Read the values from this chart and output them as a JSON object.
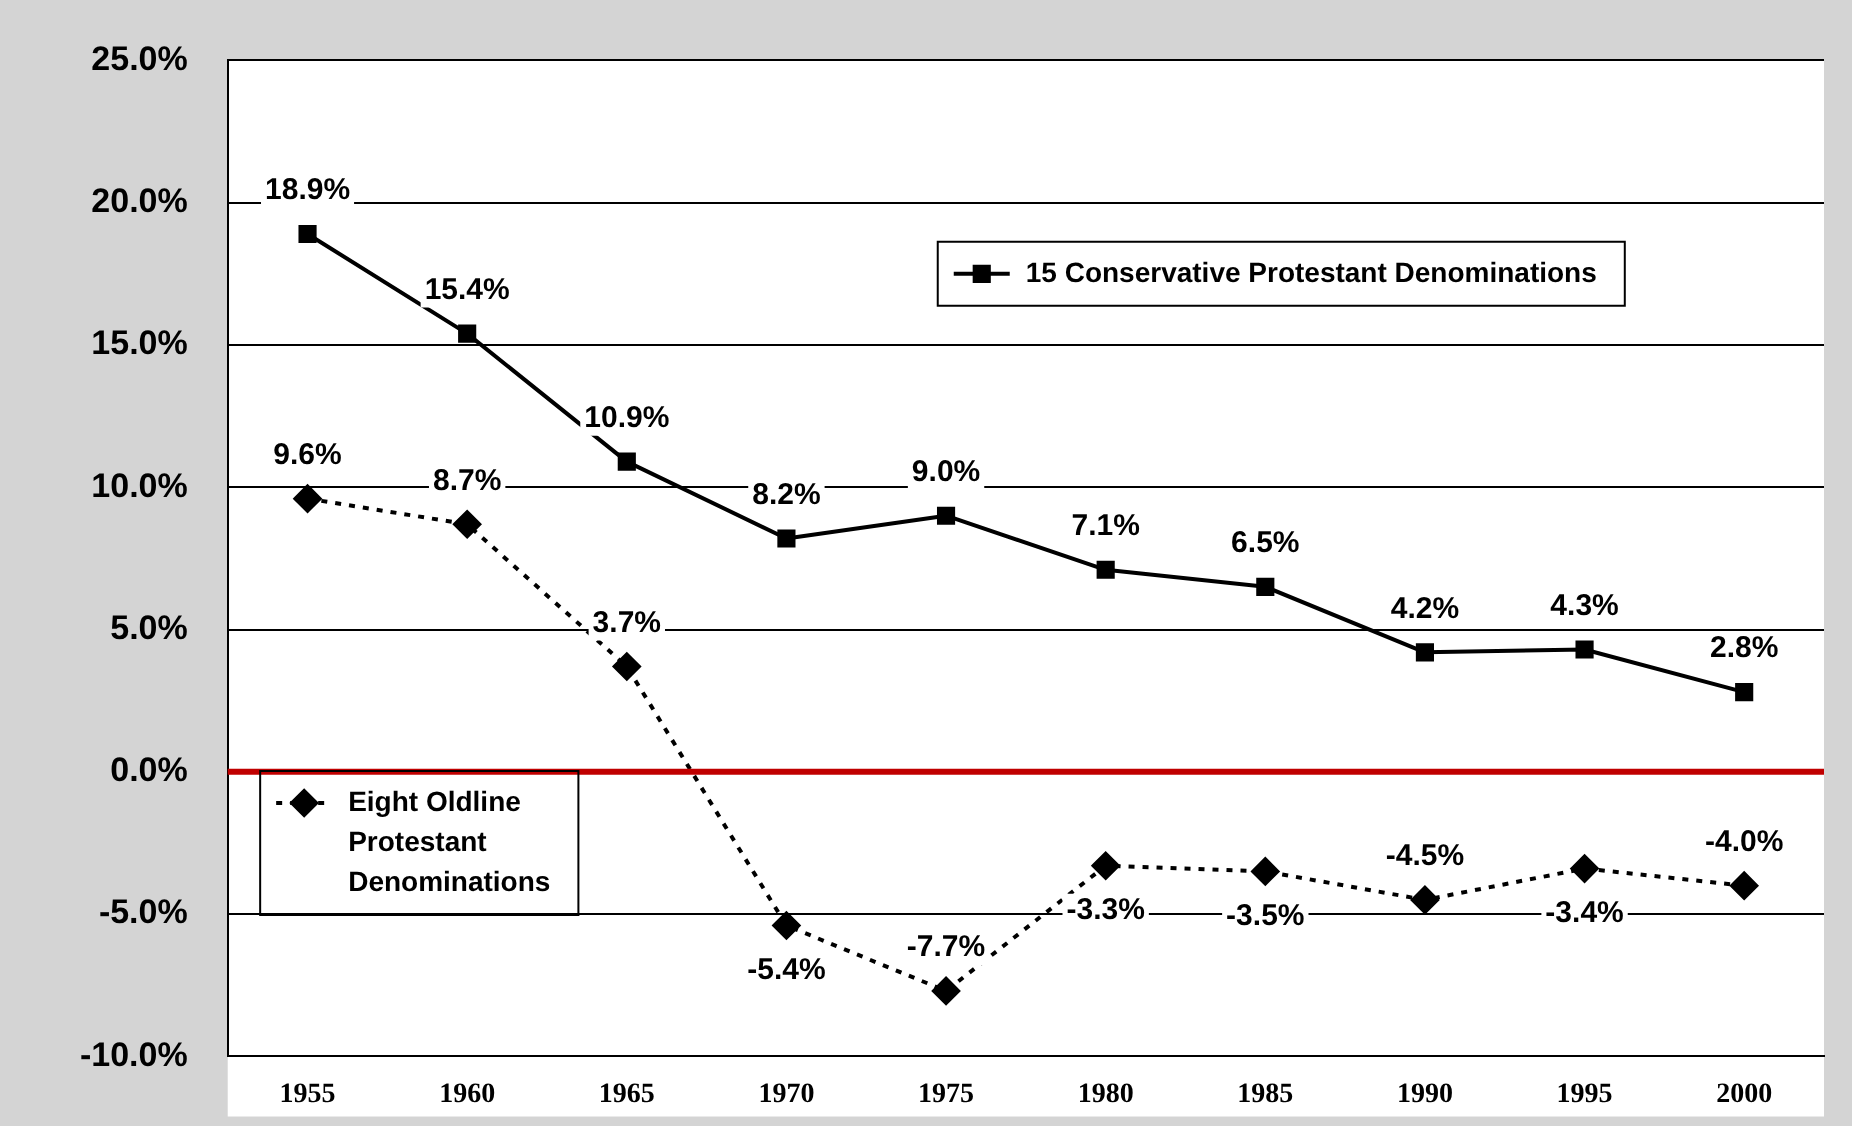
{
  "chart_data": {
    "type": "line",
    "categories": [
      "1955",
      "1960",
      "1965",
      "1970",
      "1975",
      "1980",
      "1985",
      "1990",
      "1995",
      "2000"
    ],
    "series": [
      {
        "name": "15 Conservative Protestant Denominations",
        "color": "#000000",
        "marker": "square",
        "line_style": "solid",
        "values": [
          18.9,
          15.4,
          10.9,
          8.2,
          9.0,
          7.1,
          6.5,
          4.2,
          4.3,
          2.8
        ],
        "value_labels": [
          "18.9%",
          "15.4%",
          "10.9%",
          "8.2%",
          "9.0%",
          "7.1%",
          "6.5%",
          "4.2%",
          "4.3%",
          "2.8%"
        ]
      },
      {
        "name": "Eight Oldline Protestant Denominations",
        "color": "#000000",
        "marker": "diamond",
        "line_style": "dotted",
        "values": [
          9.6,
          8.7,
          3.7,
          -5.4,
          -7.7,
          -3.3,
          -3.5,
          -4.5,
          -3.4,
          -4.0
        ],
        "value_labels": [
          "9.6%",
          "8.7%",
          "3.7%",
          "-5.4%",
          "-7.7%",
          "-3.3%",
          "-3.5%",
          "-4.5%",
          "-3.4%",
          "-4.0%"
        ]
      }
    ],
    "ylim": [
      -10,
      25
    ],
    "yticks": [
      {
        "value": -10,
        "label": "-10.0%"
      },
      {
        "value": -5,
        "label": "-5.0%"
      },
      {
        "value": 0,
        "label": "0.0%"
      },
      {
        "value": 5,
        "label": "5.0%"
      },
      {
        "value": 10,
        "label": "10.0%"
      },
      {
        "value": 15,
        "label": "15.0%"
      },
      {
        "value": 20,
        "label": "20.0%"
      },
      {
        "value": 25,
        "label": "25.0%"
      }
    ],
    "grid": "y",
    "legend": "bottom left",
    "ref_lines": [
      {
        "axis": "y",
        "value": 0,
        "color": "#c00000",
        "line_style": "solid"
      }
    ]
  }
}
